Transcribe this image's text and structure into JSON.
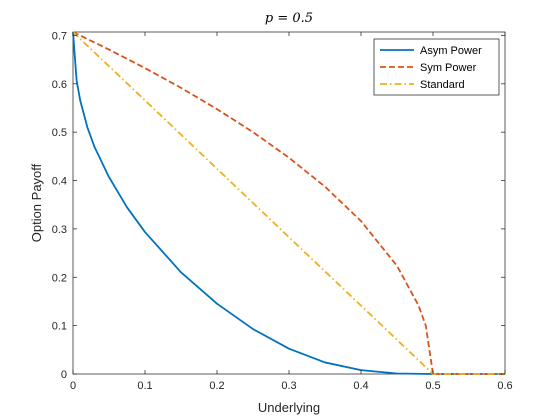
{
  "chart_data": {
    "type": "line",
    "title": "p = 0.5",
    "xlabel": "Underlying",
    "ylabel": "Option Payoff",
    "xlim": [
      0,
      0.6
    ],
    "ylim": [
      0,
      0.7071
    ],
    "xticks": [
      "0",
      "0.1",
      "0.2",
      "0.3",
      "0.4",
      "0.5",
      "0.6"
    ],
    "yticks": [
      "0",
      "0.1",
      "0.2",
      "0.3",
      "0.4",
      "0.5",
      "0.6",
      "0.7"
    ],
    "grid": false,
    "legend_position": "top-right",
    "series": [
      {
        "name": "Asym Power",
        "color": "#0072BD",
        "style": "solid",
        "x": [
          0,
          0.005,
          0.01,
          0.02,
          0.03,
          0.05,
          0.075,
          0.1,
          0.15,
          0.2,
          0.25,
          0.3,
          0.35,
          0.4,
          0.45,
          0.5,
          0.55,
          0.6
        ],
        "y": [
          0.7071,
          0.6071,
          0.5657,
          0.5099,
          0.469,
          0.4071,
          0.3446,
          0.2935,
          0.2103,
          0.1454,
          0.0929,
          0.0523,
          0.0239,
          0.008,
          0.001,
          0,
          0,
          0
        ]
      },
      {
        "name": "Sym Power",
        "color": "#D95319",
        "style": "dashed",
        "x": [
          0,
          0.05,
          0.1,
          0.15,
          0.2,
          0.25,
          0.3,
          0.35,
          0.4,
          0.45,
          0.48,
          0.49,
          0.5,
          0.55,
          0.6
        ],
        "y": [
          0.7071,
          0.6708,
          0.6325,
          0.5916,
          0.5477,
          0.5,
          0.4472,
          0.3873,
          0.3162,
          0.2236,
          0.1414,
          0.1,
          0,
          0,
          0
        ]
      },
      {
        "name": "Standard",
        "color": "#EDB120",
        "style": "dashdot",
        "x": [
          0,
          0.1,
          0.2,
          0.3,
          0.4,
          0.5,
          0.55,
          0.6
        ],
        "y": [
          0.7071,
          0.5657,
          0.4243,
          0.2828,
          0.1414,
          0,
          0,
          0
        ]
      }
    ]
  }
}
